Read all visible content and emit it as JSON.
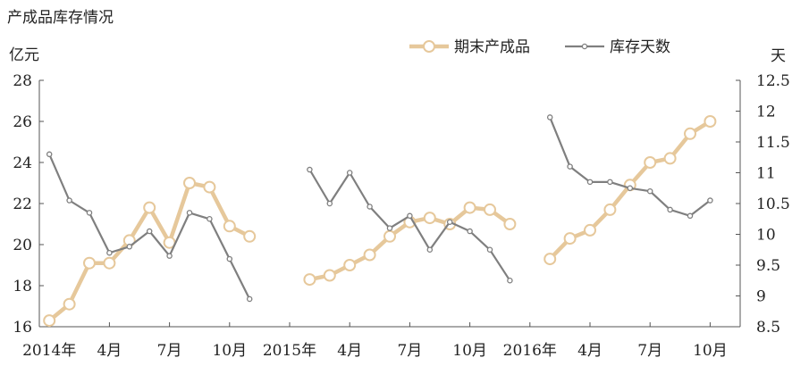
{
  "chart_data": {
    "type": "line",
    "title": "产成品库存情况",
    "left_unit": "亿元",
    "right_unit": "天",
    "left_ylim": [
      16,
      28
    ],
    "left_yticks": [
      "16",
      "18",
      "20",
      "22",
      "24",
      "26",
      "28"
    ],
    "right_ylim": [
      8.5,
      12.5
    ],
    "right_yticks": [
      "8.5",
      "9",
      "9.5",
      "10",
      "10.5",
      "11",
      "11.5",
      "12",
      "12.5"
    ],
    "x_tick_labels": [
      {
        "label": "2014年",
        "index": 0
      },
      {
        "label": "4月",
        "index": 3
      },
      {
        "label": "7月",
        "index": 6
      },
      {
        "label": "10月",
        "index": 9
      },
      {
        "label": "2015年",
        "index": 12
      },
      {
        "label": "4月",
        "index": 15
      },
      {
        "label": "7月",
        "index": 18
      },
      {
        "label": "10月",
        "index": 21
      },
      {
        "label": "2016年",
        "index": 24
      },
      {
        "label": "4月",
        "index": 27
      },
      {
        "label": "7月",
        "index": 30
      },
      {
        "label": "10月",
        "index": 33
      }
    ],
    "x_count": 35,
    "legend_position": "top-right",
    "series": [
      {
        "name": "期末产成品",
        "axis": "left",
        "color": "#E6C89B",
        "segments": [
          {
            "start": 0,
            "values": [
              16.3,
              17.1,
              19.1,
              19.1,
              20.2,
              21.8,
              20.1,
              23.0,
              22.8,
              20.9,
              20.4
            ]
          },
          {
            "start": 13,
            "values": [
              18.3,
              18.5,
              19.0,
              19.5,
              20.4,
              21.1,
              21.3,
              21.0,
              21.8,
              21.7,
              21.0
            ]
          },
          {
            "start": 25,
            "values": [
              19.3,
              20.3,
              20.7,
              21.7,
              22.9,
              24.0,
              24.2,
              25.4,
              26.0
            ]
          }
        ]
      },
      {
        "name": "库存天数",
        "axis": "right",
        "color": "#7F7F7F",
        "segments": [
          {
            "start": 0,
            "values": [
              11.3,
              10.55,
              10.35,
              9.7,
              9.8,
              10.05,
              9.65,
              10.35,
              10.25,
              9.6,
              8.95
            ]
          },
          {
            "start": 13,
            "values": [
              11.05,
              10.5,
              11.0,
              10.45,
              10.1,
              10.3,
              9.75,
              10.2,
              10.05,
              9.75,
              9.25
            ]
          },
          {
            "start": 25,
            "values": [
              11.9,
              11.1,
              10.85,
              10.85,
              10.75,
              10.7,
              10.4,
              10.3,
              10.55
            ]
          }
        ]
      }
    ]
  }
}
